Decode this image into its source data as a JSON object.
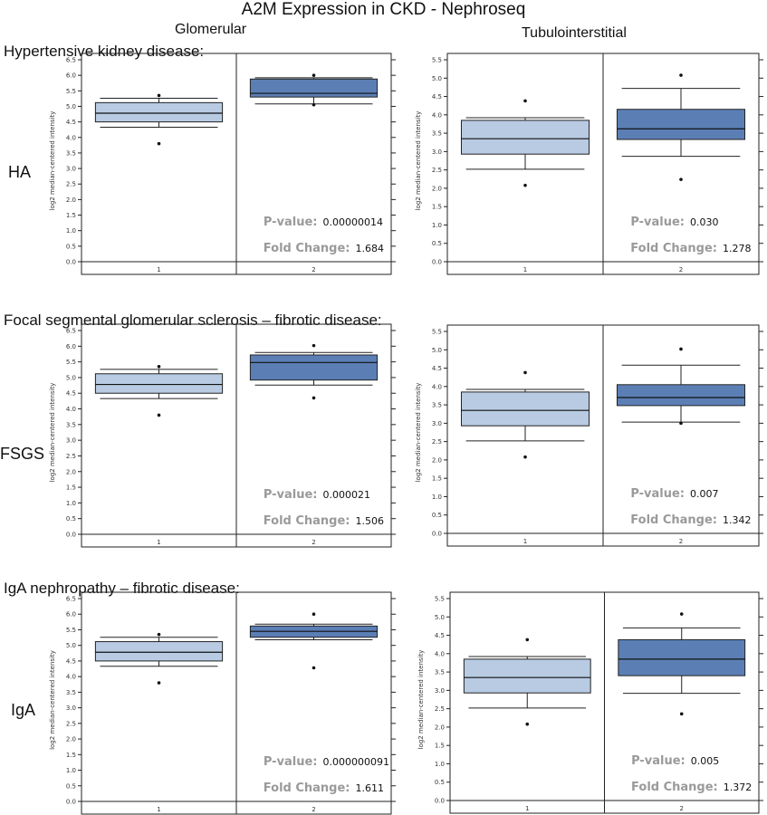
{
  "title": "A2M Expression in CKD - Nephroseq",
  "columns": [
    "Glomerular",
    "Tubulointerstitial"
  ],
  "sections": [
    "Hypertensive kidney disease:",
    "Focal segmental glomerular sclerosis – fibrotic disease:",
    "IgA nephropathy – fibrotic disease:"
  ],
  "row_labels": [
    "HA",
    "FSGS",
    "IgA"
  ],
  "stat_labels": {
    "pvalue": "P-value:",
    "fold": "Fold Change:"
  },
  "colors": {
    "group1": "#b8cbe3",
    "group2": "#5b7fb5",
    "stat_label": "#9a9a9a",
    "line": "#222222"
  },
  "chart_data": [
    {
      "type": "box",
      "row": "HA",
      "column": "Glomerular",
      "ylabel": "log2 median-centered intensity",
      "ylim": [
        0,
        6.5
      ],
      "yticks": [
        "0.0",
        "0.5",
        "1.0",
        "1.5",
        "2.0",
        "2.5",
        "3.0",
        "3.5",
        "4.0",
        "4.5",
        "5.0",
        "5.5",
        "6.0",
        "6.5"
      ],
      "categories": [
        "1",
        "2"
      ],
      "boxes": [
        {
          "q1": 4.5,
          "median": 4.78,
          "q3": 5.12,
          "whisker_low": 4.33,
          "whisker_high": 5.26,
          "outliers": [
            3.8,
            5.35
          ]
        },
        {
          "q1": 5.3,
          "median": 5.42,
          "q3": 5.88,
          "whisker_low": 5.08,
          "whisker_high": 5.92,
          "outliers": [
            5.05,
            6.0
          ]
        }
      ],
      "pvalue": "0.00000014",
      "fold_change": "1.684"
    },
    {
      "type": "box",
      "row": "HA",
      "column": "Tubulointerstitial",
      "ylabel": "log2 median-centered intensity",
      "ylim": [
        0,
        5.5
      ],
      "yticks": [
        "0.0",
        "0.5",
        "1.0",
        "1.5",
        "2.0",
        "2.5",
        "3.0",
        "3.5",
        "4.0",
        "4.5",
        "5.0",
        "5.5"
      ],
      "categories": [
        "1",
        "2"
      ],
      "boxes": [
        {
          "q1": 2.93,
          "median": 3.35,
          "q3": 3.85,
          "whisker_low": 2.52,
          "whisker_high": 3.92,
          "outliers": [
            2.08,
            4.38
          ]
        },
        {
          "q1": 3.33,
          "median": 3.62,
          "q3": 4.15,
          "whisker_low": 2.87,
          "whisker_high": 4.72,
          "outliers": [
            2.24,
            5.08
          ]
        }
      ],
      "pvalue": "0.030",
      "fold_change": "1.278"
    },
    {
      "type": "box",
      "row": "FSGS",
      "column": "Glomerular",
      "ylabel": "log2 median-centered intensity",
      "ylim": [
        0,
        6.5
      ],
      "yticks": [
        "0.0",
        "0.5",
        "1.0",
        "1.5",
        "2.0",
        "2.5",
        "3.0",
        "3.5",
        "4.0",
        "4.5",
        "5.0",
        "5.5",
        "6.0",
        "6.5"
      ],
      "categories": [
        "1",
        "2"
      ],
      "boxes": [
        {
          "q1": 4.5,
          "median": 4.78,
          "q3": 5.12,
          "whisker_low": 4.33,
          "whisker_high": 5.26,
          "outliers": [
            3.8,
            5.35
          ]
        },
        {
          "q1": 4.92,
          "median": 5.48,
          "q3": 5.72,
          "whisker_low": 4.76,
          "whisker_high": 5.8,
          "outliers": [
            4.35,
            6.02
          ]
        }
      ],
      "pvalue": "0.000021",
      "fold_change": "1.506"
    },
    {
      "type": "box",
      "row": "FSGS",
      "column": "Tubulointerstitial",
      "ylabel": "log2 median-centered intensity",
      "ylim": [
        0,
        5.5
      ],
      "yticks": [
        "0.0",
        "0.5",
        "1.0",
        "1.5",
        "2.0",
        "2.5",
        "3.0",
        "3.5",
        "4.0",
        "4.5",
        "5.0",
        "5.5"
      ],
      "categories": [
        "1",
        "2"
      ],
      "boxes": [
        {
          "q1": 2.93,
          "median": 3.35,
          "q3": 3.85,
          "whisker_low": 2.52,
          "whisker_high": 3.92,
          "outliers": [
            2.08,
            4.38
          ]
        },
        {
          "q1": 3.48,
          "median": 3.7,
          "q3": 4.05,
          "whisker_low": 3.03,
          "whisker_high": 4.58,
          "outliers": [
            3.0,
            5.02
          ]
        }
      ],
      "pvalue": "0.007",
      "fold_change": "1.342"
    },
    {
      "type": "box",
      "row": "IgA",
      "column": "Glomerular",
      "ylabel": "log2 median-centered intensity",
      "ylim": [
        0,
        6.5
      ],
      "yticks": [
        "0.0",
        "0.5",
        "1.0",
        "1.5",
        "2.0",
        "2.5",
        "3.0",
        "3.5",
        "4.0",
        "4.5",
        "5.0",
        "5.5",
        "6.0",
        "6.5"
      ],
      "categories": [
        "1",
        "2"
      ],
      "boxes": [
        {
          "q1": 4.5,
          "median": 4.78,
          "q3": 5.12,
          "whisker_low": 4.33,
          "whisker_high": 5.26,
          "outliers": [
            3.8,
            5.35
          ]
        },
        {
          "q1": 5.26,
          "median": 5.45,
          "q3": 5.62,
          "whisker_low": 5.18,
          "whisker_high": 5.68,
          "outliers": [
            4.28,
            6.0
          ]
        }
      ],
      "pvalue": "0.000000091",
      "fold_change": "1.611"
    },
    {
      "type": "box",
      "row": "IgA",
      "column": "Tubulointerstitial",
      "ylabel": "log2 median-centered intensity",
      "ylim": [
        0,
        5.5
      ],
      "yticks": [
        "0.0",
        "0.5",
        "1.0",
        "1.5",
        "2.0",
        "2.5",
        "3.0",
        "3.5",
        "4.0",
        "4.5",
        "5.0",
        "5.5"
      ],
      "categories": [
        "1",
        "2"
      ],
      "boxes": [
        {
          "q1": 2.93,
          "median": 3.35,
          "q3": 3.85,
          "whisker_low": 2.52,
          "whisker_high": 3.92,
          "outliers": [
            2.08,
            4.38
          ]
        },
        {
          "q1": 3.4,
          "median": 3.85,
          "q3": 4.38,
          "whisker_low": 2.92,
          "whisker_high": 4.7,
          "outliers": [
            2.36,
            5.08
          ]
        }
      ],
      "pvalue": "0.005",
      "fold_change": "1.372"
    }
  ]
}
